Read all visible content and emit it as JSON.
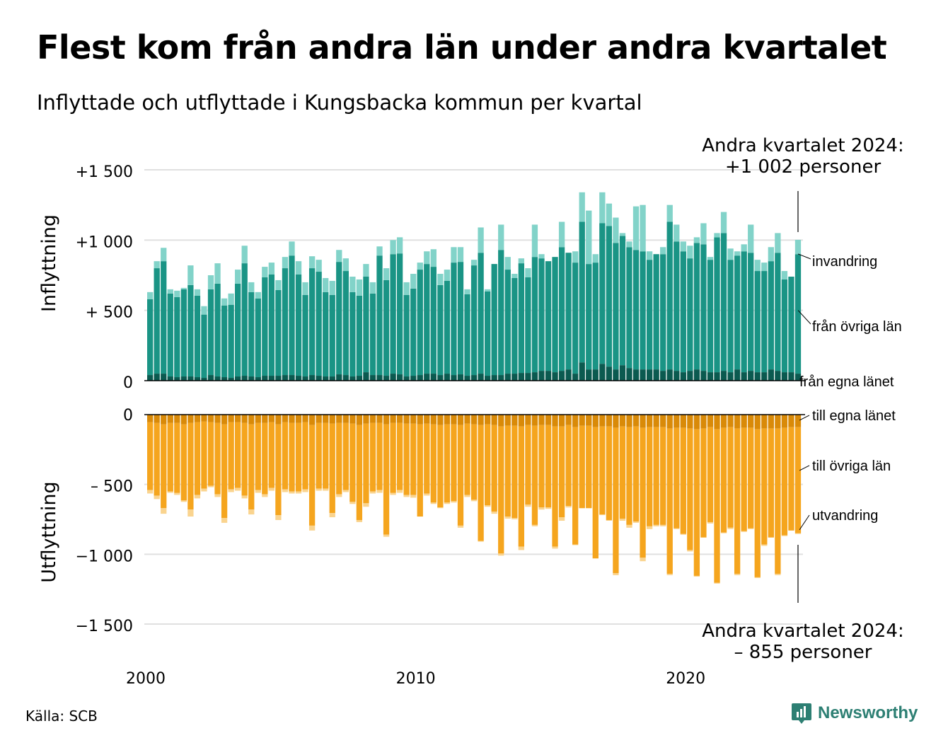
{
  "title": "Flest kom från andra län under andra kvartalet",
  "subtitle": "Inflyttade och utflyttade i Kungsbacka kommun per kvartal",
  "source": "Källa: SCB",
  "brand": "Newsworthy",
  "colors": {
    "in_own": "#0b5a50",
    "in_other": "#1a9485",
    "in_immigration": "#82d3c9",
    "out_own": "#d98a08",
    "out_other": "#f5a51e",
    "out_emigration": "#fad48f",
    "grid": "#e0e0e0",
    "brand": "#2d7f73"
  },
  "chart_data": {
    "type": "bar",
    "x_start_year": 2000,
    "x_ticks": [
      "2000",
      "2010",
      "2020"
    ],
    "panels": [
      {
        "id": "in",
        "ylabel": "Inflyttning",
        "ylim": [
          0,
          1500
        ],
        "ticks": [
          "+1 500",
          "+1 000",
          "+  500",
          "0"
        ],
        "series_labels": [
          "invandring",
          "från övriga län",
          "från egna länet"
        ],
        "annotation": [
          "Andra kvartalet 2024:",
          "+1 002 personer"
        ]
      },
      {
        "id": "out",
        "ylabel": "Utflyttning",
        "ylim": [
          -1500,
          0
        ],
        "ticks": [
          "0",
          "–  500",
          "−1 000",
          "−1 500"
        ],
        "series_labels": [
          "till egna länet",
          "till övriga län",
          "utvandring"
        ],
        "annotation": [
          "Andra kvartalet 2024:",
          "–  855 personer"
        ]
      }
    ],
    "inflow_total": [
      630,
      850,
      945,
      650,
      640,
      660,
      820,
      650,
      530,
      750,
      835,
      585,
      620,
      790,
      960,
      700,
      630,
      810,
      840,
      715,
      880,
      990,
      850,
      700,
      885,
      860,
      730,
      710,
      930,
      870,
      740,
      720,
      830,
      700,
      955,
      800,
      1000,
      1020,
      700,
      760,
      840,
      920,
      935,
      760,
      790,
      950,
      950,
      650,
      860,
      1090,
      650,
      830,
      1110,
      880,
      760,
      870,
      800,
      1110,
      900,
      780,
      870,
      1130,
      890,
      920,
      1340,
      1210,
      900,
      1340,
      1260,
      1160,
      1050,
      990,
      1240,
      1250,
      920,
      900,
      950,
      1250,
      1110,
      990,
      960,
      1020,
      1120,
      880,
      1050,
      1200,
      940,
      920,
      970,
      1110,
      860,
      840,
      950,
      1050,
      780,
      740,
      1002
    ],
    "inflow_own": [
      40,
      50,
      50,
      30,
      25,
      30,
      30,
      25,
      20,
      40,
      30,
      25,
      20,
      30,
      35,
      30,
      25,
      35,
      35,
      35,
      40,
      40,
      35,
      30,
      40,
      35,
      30,
      30,
      45,
      40,
      30,
      35,
      60,
      40,
      40,
      35,
      50,
      45,
      30,
      35,
      40,
      50,
      50,
      40,
      50,
      40,
      45,
      35,
      40,
      50,
      35,
      40,
      40,
      50,
      50,
      55,
      55,
      60,
      70,
      70,
      60,
      70,
      80,
      50,
      130,
      80,
      80,
      120,
      100,
      80,
      110,
      90,
      80,
      80,
      80,
      80,
      70,
      80,
      70,
      60,
      70,
      80,
      70,
      60,
      60,
      70,
      60,
      80,
      60,
      70,
      60,
      60,
      80,
      70,
      60,
      60,
      50
    ],
    "inflow_other": [
      540,
      750,
      800,
      590,
      570,
      620,
      650,
      580,
      450,
      610,
      660,
      510,
      520,
      660,
      800,
      600,
      560,
      700,
      720,
      610,
      760,
      850,
      720,
      580,
      760,
      740,
      600,
      580,
      800,
      740,
      600,
      570,
      680,
      580,
      850,
      680,
      850,
      860,
      580,
      620,
      750,
      780,
      760,
      640,
      660,
      800,
      800,
      580,
      780,
      860,
      600,
      790,
      890,
      740,
      680,
      780,
      680,
      820,
      800,
      780,
      820,
      880,
      830,
      790,
      1000,
      750,
      760,
      1000,
      1000,
      900,
      920,
      860,
      850,
      840,
      780,
      820,
      830,
      1050,
      920,
      860,
      800,
      900,
      900,
      800,
      960,
      980,
      800,
      810,
      860,
      840,
      720,
      720,
      770,
      840,
      660,
      680,
      850
    ],
    "outflow_total": [
      565,
      605,
      710,
      560,
      575,
      625,
      730,
      600,
      550,
      520,
      590,
      775,
      555,
      545,
      600,
      715,
      560,
      590,
      545,
      755,
      555,
      565,
      565,
      555,
      830,
      545,
      545,
      735,
      590,
      555,
      640,
      770,
      660,
      565,
      560,
      875,
      575,
      560,
      590,
      595,
      730,
      580,
      640,
      670,
      640,
      630,
      810,
      590,
      620,
      910,
      660,
      710,
      1010,
      745,
      750,
      970,
      660,
      800,
      680,
      675,
      960,
      760,
      665,
      935,
      670,
      670,
      1030,
      720,
      760,
      1150,
      760,
      810,
      775,
      1050,
      820,
      800,
      800,
      1150,
      820,
      860,
      980,
      1160,
      880,
      780,
      1210,
      850,
      820,
      1150,
      840,
      820,
      1170,
      940,
      880,
      1150,
      870,
      830,
      855
    ],
    "outflow_own": [
      55,
      60,
      70,
      60,
      60,
      70,
      60,
      55,
      50,
      55,
      60,
      70,
      55,
      55,
      60,
      70,
      60,
      60,
      55,
      70,
      55,
      60,
      60,
      55,
      75,
      60,
      60,
      65,
      60,
      60,
      65,
      75,
      65,
      60,
      60,
      70,
      60,
      60,
      65,
      65,
      70,
      65,
      70,
      75,
      70,
      70,
      75,
      65,
      70,
      75,
      70,
      75,
      85,
      80,
      80,
      85,
      75,
      80,
      75,
      75,
      85,
      85,
      75,
      90,
      80,
      80,
      90,
      85,
      85,
      95,
      85,
      90,
      85,
      95,
      90,
      90,
      90,
      100,
      95,
      95,
      100,
      105,
      100,
      90,
      105,
      95,
      90,
      100,
      95,
      95,
      105,
      100,
      100,
      100,
      95,
      90,
      90
    ],
    "outflow_other": [
      485,
      520,
      600,
      490,
      500,
      545,
      620,
      520,
      480,
      455,
      510,
      670,
      480,
      470,
      520,
      610,
      480,
      510,
      470,
      650,
      480,
      490,
      490,
      480,
      720,
      470,
      470,
      640,
      510,
      480,
      560,
      680,
      570,
      490,
      480,
      790,
      500,
      480,
      510,
      510,
      660,
      500,
      560,
      590,
      560,
      550,
      720,
      510,
      540,
      830,
      580,
      620,
      910,
      650,
      660,
      860,
      570,
      710,
      590,
      590,
      860,
      650,
      580,
      840,
      590,
      590,
      940,
      630,
      670,
      1040,
      660,
      700,
      680,
      930,
      710,
      700,
      700,
      1040,
      720,
      760,
      870,
      1050,
      780,
      680,
      1100,
      750,
      720,
      1040,
      740,
      720,
      1060,
      830,
      780,
      1040,
      770,
      740,
      760
    ]
  }
}
